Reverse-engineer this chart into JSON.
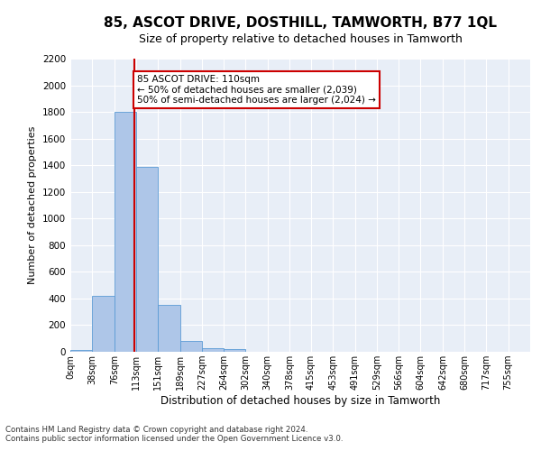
{
  "title": "85, ASCOT DRIVE, DOSTHILL, TAMWORTH, B77 1QL",
  "subtitle": "Size of property relative to detached houses in Tamworth",
  "xlabel": "Distribution of detached houses by size in Tamworth",
  "ylabel": "Number of detached properties",
  "bar_labels": [
    "0sqm",
    "38sqm",
    "76sqm",
    "113sqm",
    "151sqm",
    "189sqm",
    "227sqm",
    "264sqm",
    "302sqm",
    "340sqm",
    "378sqm",
    "415sqm",
    "453sqm",
    "491sqm",
    "529sqm",
    "566sqm",
    "604sqm",
    "642sqm",
    "680sqm",
    "717sqm",
    "755sqm"
  ],
  "bar_heights": [
    15,
    420,
    1800,
    1390,
    350,
    80,
    30,
    18,
    0,
    0,
    0,
    0,
    0,
    0,
    0,
    0,
    0,
    0,
    0,
    0,
    0
  ],
  "bar_color": "#AEC6E8",
  "bar_edgecolor": "#5B9BD5",
  "background_color": "#E8EEF7",
  "grid_color": "#ffffff",
  "vline_x": 110,
  "vline_color": "#cc0000",
  "annotation_text": "85 ASCOT DRIVE: 110sqm\n← 50% of detached houses are smaller (2,039)\n50% of semi-detached houses are larger (2,024) →",
  "annotation_box_color": "#ffffff",
  "annotation_box_edgecolor": "#cc0000",
  "ylim": [
    0,
    2200
  ],
  "footer1": "Contains HM Land Registry data © Crown copyright and database right 2024.",
  "footer2": "Contains public sector information licensed under the Open Government Licence v3.0.",
  "title_fontsize": 11,
  "subtitle_fontsize": 9,
  "tick_fontsize": 7,
  "ylabel_fontsize": 8,
  "xlabel_fontsize": 8.5,
  "annotation_fontsize": 7.5
}
